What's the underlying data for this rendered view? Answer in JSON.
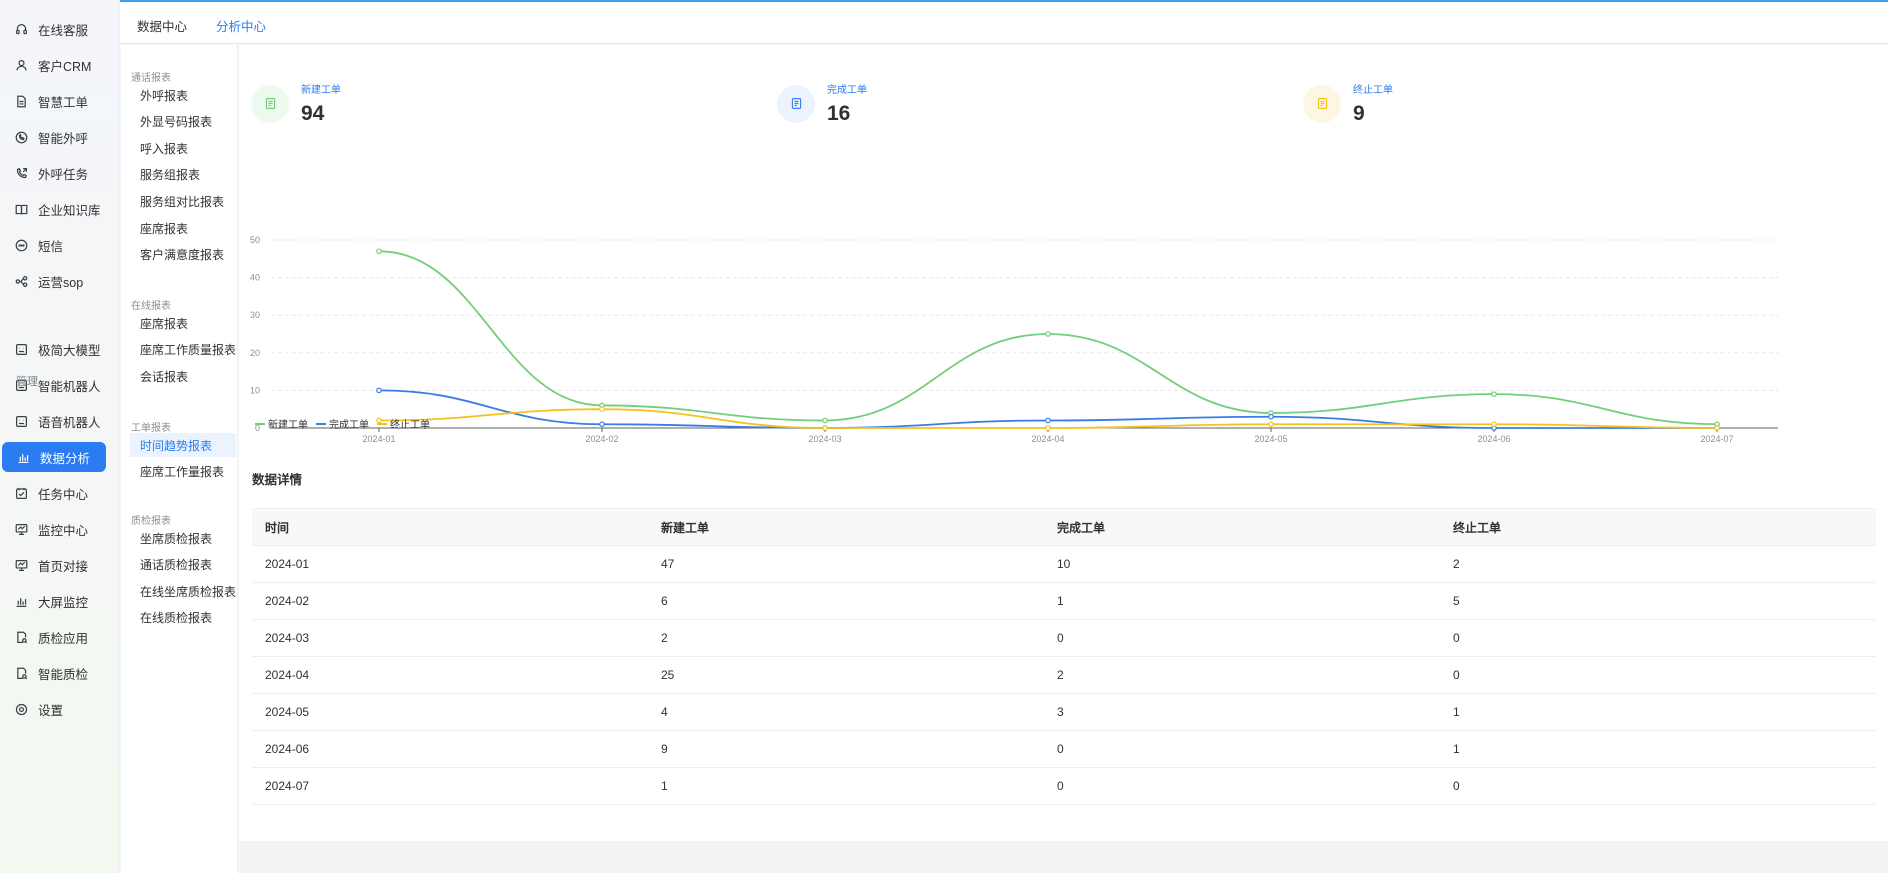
{
  "sidebar": {
    "items": [
      {
        "label": "在线客服",
        "icon": "headset-icon"
      },
      {
        "label": "客户CRM",
        "icon": "user-icon"
      },
      {
        "label": "智慧工单",
        "icon": "document-icon"
      },
      {
        "label": "智能外呼",
        "icon": "phone-circle-icon"
      },
      {
        "label": "外呼任务",
        "icon": "phone-forward-icon"
      },
      {
        "label": "企业知识库",
        "icon": "book-icon"
      },
      {
        "label": "短信",
        "icon": "message-icon"
      },
      {
        "label": "运营sop",
        "icon": "flow-icon"
      },
      {
        "label": "极简大模型",
        "icon": "robot-icon"
      },
      {
        "label": "智能机器人",
        "icon": "robot-icon"
      },
      {
        "label": "语音机器人",
        "icon": "robot-icon"
      },
      {
        "label": "数据分析",
        "icon": "bar-chart-icon"
      },
      {
        "label": "任务中心",
        "icon": "task-icon"
      },
      {
        "label": "监控中心",
        "icon": "monitor-icon"
      },
      {
        "label": "首页对接",
        "icon": "monitor-icon"
      },
      {
        "label": "大屏监控",
        "icon": "bar-chart-icon"
      },
      {
        "label": "质检应用",
        "icon": "inspect-icon"
      },
      {
        "label": "智能质检",
        "icon": "inspect-icon"
      },
      {
        "label": "设置",
        "icon": "gear-icon"
      }
    ],
    "group_label": "管理"
  },
  "topbar": {
    "tabs": [
      {
        "label": "数据中心"
      },
      {
        "label": "分析中心"
      }
    ]
  },
  "subnav": {
    "groups": [
      {
        "title": "通话报表",
        "items": [
          "外呼报表",
          "外显号码报表",
          "呼入报表",
          "服务组报表",
          "服务组对比报表",
          "座席报表",
          "客户满意度报表"
        ]
      },
      {
        "title": "在线报表",
        "items": [
          "座席报表",
          "座席工作质量报表",
          "会话报表"
        ]
      },
      {
        "title": "工单报表",
        "items": [
          "时间趋势报表",
          "座席工作量报表"
        ]
      },
      {
        "title": "质检报表",
        "items": [
          "坐席质检报表",
          "通话质检报表",
          "在线坐席质检报表",
          "在线质检报表"
        ]
      }
    ]
  },
  "stats": [
    {
      "label": "新建工单",
      "value": "94",
      "color": "#6fcf7a",
      "bg": "#eef9ef",
      "icon": "ticket-icon"
    },
    {
      "label": "完成工单",
      "value": "16",
      "color": "#3b82f6",
      "bg": "#edf3fd",
      "icon": "ticket-icon"
    },
    {
      "label": "终止工单",
      "value": "9",
      "color": "#f5c21b",
      "bg": "#fdf6e3",
      "icon": "ticket-icon"
    }
  ],
  "chart_data": {
    "type": "line",
    "categories": [
      "2024-01",
      "2024-02",
      "2024-03",
      "2024-04",
      "2024-05",
      "2024-06",
      "2024-07"
    ],
    "yticks": [
      "0",
      "10",
      "20",
      "30",
      "40",
      "50"
    ],
    "ylim": [
      0,
      50
    ],
    "grid": true,
    "legend_position": "bottom-left",
    "series": [
      {
        "name": "新建工单",
        "values": [
          47,
          6,
          2,
          25,
          4,
          9,
          1
        ],
        "color": "#6fcf7a"
      },
      {
        "name": "完成工单",
        "values": [
          10,
          1,
          0,
          2,
          3,
          0,
          0
        ],
        "color": "#3b7be6"
      },
      {
        "name": "终止工单",
        "values": [
          2,
          5,
          0,
          0,
          1,
          1,
          0
        ],
        "color": "#f5c21b"
      }
    ]
  },
  "detail": {
    "title": "数据详情",
    "headers": [
      "时间",
      "新建工单",
      "完成工单",
      "终止工单"
    ],
    "rows": [
      [
        "2024-01",
        "47",
        "10",
        "2"
      ],
      [
        "2024-02",
        "6",
        "1",
        "5"
      ],
      [
        "2024-03",
        "2",
        "0",
        "0"
      ],
      [
        "2024-04",
        "25",
        "2",
        "0"
      ],
      [
        "2024-05",
        "4",
        "3",
        "1"
      ],
      [
        "2024-06",
        "9",
        "0",
        "1"
      ],
      [
        "2024-07",
        "1",
        "0",
        "0"
      ]
    ]
  }
}
